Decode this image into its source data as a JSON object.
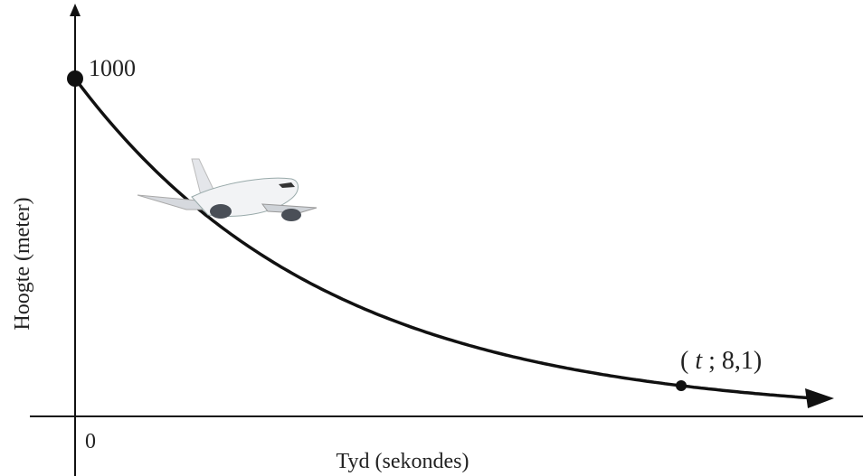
{
  "axes": {
    "y_label": "Hoogte (meter)",
    "x_label": "Tyd (sekondes)",
    "origin_label": "0",
    "start_label": "1000"
  },
  "point_label": {
    "open": "(",
    "variable": "t",
    "rest": "; 8,1)"
  }
}
